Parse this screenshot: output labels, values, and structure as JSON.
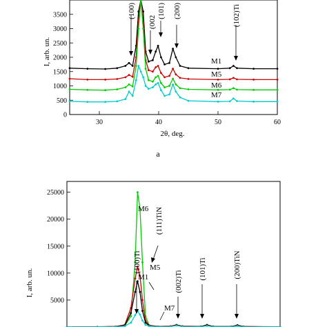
{
  "chart_data": [
    {
      "type": "line",
      "panel_label": "a",
      "xlabel": "2θ, deg.",
      "ylabel": "I, arb. un.",
      "xlim": [
        25,
        60
      ],
      "ylim": [
        0,
        4000
      ],
      "xticks": [
        "30",
        "40",
        "50",
        "60"
      ],
      "yticks": [
        "0",
        "500",
        "1000",
        "1500",
        "2000",
        "2500",
        "3000",
        "3500"
      ],
      "xtick_values": [
        30,
        40,
        50,
        60
      ],
      "ytick_values": [
        0,
        500,
        1000,
        1500,
        2000,
        2500,
        3000,
        3500
      ],
      "grid": false,
      "series": [
        {
          "name": "M1",
          "color": "#000000",
          "points": [
            [
              25,
              1620
            ],
            [
              28,
              1600
            ],
            [
              31,
              1590
            ],
            [
              33,
              1620
            ],
            [
              34.4,
              1700
            ],
            [
              35,
              1800
            ],
            [
              35.6,
              1700
            ],
            [
              36.2,
              2400
            ],
            [
              36.6,
              3600
            ],
            [
              37,
              4000
            ],
            [
              37.4,
              3600
            ],
            [
              37.8,
              2200
            ],
            [
              38.3,
              1850
            ],
            [
              39,
              1900
            ],
            [
              39.5,
              2200
            ],
            [
              39.9,
              2400
            ],
            [
              40.4,
              2000
            ],
            [
              41,
              1750
            ],
            [
              41.8,
              1800
            ],
            [
              42.4,
              2300
            ],
            [
              42.9,
              2000
            ],
            [
              43.6,
              1700
            ],
            [
              45,
              1620
            ],
            [
              50,
              1600
            ],
            [
              52,
              1620
            ],
            [
              52.6,
              1700
            ],
            [
              53.2,
              1620
            ],
            [
              56,
              1600
            ],
            [
              60,
              1600
            ]
          ]
        },
        {
          "name": "M5",
          "color": "#cc0000",
          "points": [
            [
              25,
              1250
            ],
            [
              28,
              1220
            ],
            [
              31,
              1220
            ],
            [
              33,
              1240
            ],
            [
              34.4,
              1300
            ],
            [
              35,
              1380
            ],
            [
              35.6,
              1320
            ],
            [
              36.2,
              2000
            ],
            [
              36.6,
              3300
            ],
            [
              37,
              4000
            ],
            [
              37.4,
              3200
            ],
            [
              37.8,
              1900
            ],
            [
              38.3,
              1550
            ],
            [
              39,
              1500
            ],
            [
              39.5,
              1650
            ],
            [
              39.9,
              1700
            ],
            [
              40.4,
              1450
            ],
            [
              41,
              1300
            ],
            [
              41.8,
              1350
            ],
            [
              42.4,
              1600
            ],
            [
              42.9,
              1400
            ],
            [
              43.6,
              1280
            ],
            [
              45,
              1240
            ],
            [
              50,
              1220
            ],
            [
              52,
              1230
            ],
            [
              52.6,
              1280
            ],
            [
              53.2,
              1230
            ],
            [
              56,
              1220
            ],
            [
              60,
              1220
            ]
          ]
        },
        {
          "name": "M6",
          "color": "#00cc00",
          "points": [
            [
              25,
              880
            ],
            [
              28,
              860
            ],
            [
              31,
              850
            ],
            [
              33,
              880
            ],
            [
              34.4,
              950
            ],
            [
              35,
              1050
            ],
            [
              35.6,
              980
            ],
            [
              36.2,
              1700
            ],
            [
              36.6,
              3000
            ],
            [
              37,
              4000
            ],
            [
              37.4,
              3000
            ],
            [
              37.8,
              1600
            ],
            [
              38.3,
              1200
            ],
            [
              39,
              1150
            ],
            [
              39.5,
              1300
            ],
            [
              39.9,
              1350
            ],
            [
              40.4,
              1100
            ],
            [
              41,
              950
            ],
            [
              41.8,
              1000
            ],
            [
              42.4,
              1250
            ],
            [
              42.9,
              1050
            ],
            [
              43.6,
              920
            ],
            [
              45,
              880
            ],
            [
              50,
              860
            ],
            [
              52,
              870
            ],
            [
              52.6,
              920
            ],
            [
              53.2,
              870
            ],
            [
              56,
              860
            ],
            [
              60,
              860
            ]
          ]
        },
        {
          "name": "M7",
          "color": "#00cccc",
          "points": [
            [
              25,
              460
            ],
            [
              28,
              440
            ],
            [
              31,
              440
            ],
            [
              33,
              460
            ],
            [
              34.4,
              540
            ],
            [
              35,
              800
            ],
            [
              35.6,
              650
            ],
            [
              36.2,
              1200
            ],
            [
              36.6,
              1700
            ],
            [
              37,
              1500
            ],
            [
              37.4,
              1300
            ],
            [
              37.8,
              1000
            ],
            [
              38.3,
              900
            ],
            [
              39,
              950
            ],
            [
              39.5,
              1050
            ],
            [
              39.9,
              1100
            ],
            [
              40.4,
              850
            ],
            [
              41,
              650
            ],
            [
              41.8,
              700
            ],
            [
              42.4,
              1050
            ],
            [
              42.9,
              800
            ],
            [
              43.6,
              600
            ],
            [
              45,
              480
            ],
            [
              50,
              450
            ],
            [
              52,
              460
            ],
            [
              52.6,
              560
            ],
            [
              53.2,
              470
            ],
            [
              56,
              450
            ],
            [
              60,
              450
            ]
          ]
        }
      ],
      "annotations": [
        "(100)",
        "(002",
        "(101)",
        "(200)",
        "(102)Ti"
      ]
    },
    {
      "type": "line",
      "ylabel": "I, arb. un.",
      "yticks": [
        "5000",
        "10000",
        "15000",
        "20000",
        "25000"
      ],
      "ytick_values": [
        5000,
        10000,
        15000,
        20000,
        25000
      ],
      "xlim": [
        25,
        60
      ],
      "ylim": [
        0,
        27000
      ],
      "grid": false,
      "series": [
        {
          "name": "M6",
          "color": "#00cc00",
          "points": [
            [
              25,
              0
            ],
            [
              30,
              20
            ],
            [
              33,
              80
            ],
            [
              34.5,
              200
            ],
            [
              35.5,
              2000
            ],
            [
              36.2,
              12000
            ],
            [
              36.6,
              25000
            ],
            [
              37,
              22000
            ],
            [
              37.4,
              12000
            ],
            [
              37.9,
              2000
            ],
            [
              38.5,
              300
            ],
            [
              40,
              80
            ],
            [
              42,
              100
            ],
            [
              43,
              300
            ],
            [
              44,
              100
            ],
            [
              47,
              80
            ],
            [
              48,
              260
            ],
            [
              49,
              80
            ],
            [
              52,
              80
            ],
            [
              53,
              200
            ],
            [
              54,
              60
            ],
            [
              60,
              20
            ]
          ]
        },
        {
          "name": "M5",
          "color": "#cc0000",
          "points": [
            [
              25,
              0
            ],
            [
              30,
              40
            ],
            [
              33,
              100
            ],
            [
              34.5,
              400
            ],
            [
              35.5,
              3500
            ],
            [
              36.2,
              9000
            ],
            [
              36.6,
              11200
            ],
            [
              37,
              9500
            ],
            [
              37.4,
              5000
            ],
            [
              37.9,
              1200
            ],
            [
              38.5,
              300
            ],
            [
              40,
              100
            ],
            [
              42,
              150
            ],
            [
              43,
              400
            ],
            [
              44,
              150
            ],
            [
              47,
              120
            ],
            [
              48,
              400
            ],
            [
              49,
              120
            ],
            [
              52,
              100
            ],
            [
              53,
              350
            ],
            [
              54,
              100
            ],
            [
              60,
              40
            ]
          ]
        },
        {
          "name": "M1",
          "color": "#000000",
          "points": [
            [
              25,
              0
            ],
            [
              30,
              30
            ],
            [
              33,
              80
            ],
            [
              34.5,
              300
            ],
            [
              35.5,
              2600
            ],
            [
              36.2,
              6500
            ],
            [
              36.6,
              8500
            ],
            [
              37,
              6500
            ],
            [
              37.4,
              3000
            ],
            [
              37.9,
              800
            ],
            [
              38.5,
              250
            ],
            [
              40,
              80
            ],
            [
              42,
              120
            ],
            [
              43,
              350
            ],
            [
              44,
              120
            ],
            [
              47,
              100
            ],
            [
              48,
              350
            ],
            [
              49,
              100
            ],
            [
              52,
              90
            ],
            [
              53,
              300
            ],
            [
              54,
              80
            ],
            [
              60,
              30
            ]
          ]
        },
        {
          "name": "M7",
          "color": "#00cccc",
          "points": [
            [
              25,
              0
            ],
            [
              30,
              20
            ],
            [
              33,
              60
            ],
            [
              34.5,
              150
            ],
            [
              35.5,
              800
            ],
            [
              36.2,
              2200
            ],
            [
              36.6,
              3000
            ],
            [
              37,
              2300
            ],
            [
              37.4,
              1200
            ],
            [
              37.9,
              400
            ],
            [
              38.5,
              150
            ],
            [
              40,
              60
            ],
            [
              42,
              80
            ],
            [
              43,
              250
            ],
            [
              44,
              80
            ],
            [
              47,
              60
            ],
            [
              48,
              200
            ],
            [
              49,
              60
            ],
            [
              52,
              60
            ],
            [
              53,
              160
            ],
            [
              54,
              40
            ],
            [
              60,
              20
            ]
          ]
        }
      ],
      "annotations": [
        "(111)TiN",
        "(100)Ti",
        "(002)Ti",
        "(101)Ti",
        "(200)TiN"
      ]
    }
  ]
}
